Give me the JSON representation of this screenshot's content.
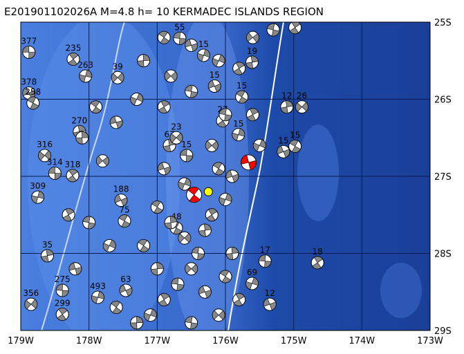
{
  "map": {
    "title": "E201901102026A M=4.8 h= 10 KERMADEC ISLANDS REGION",
    "xlim": [
      -179,
      -173
    ],
    "ylim": [
      -29,
      -25
    ],
    "xticks": [
      {
        "value": -179,
        "label": "179W"
      },
      {
        "value": -178,
        "label": "178W"
      },
      {
        "value": -177,
        "label": "177W"
      },
      {
        "value": -176,
        "label": "176W"
      },
      {
        "value": -175,
        "label": "175W"
      },
      {
        "value": -174,
        "label": "174W"
      },
      {
        "value": -173,
        "label": "173W"
      }
    ],
    "yticks": [
      {
        "value": -25,
        "label": "25S"
      },
      {
        "value": -26,
        "label": "26S"
      },
      {
        "value": -27,
        "label": "27S"
      },
      {
        "value": -28,
        "label": "28S"
      },
      {
        "value": -29,
        "label": "29S"
      }
    ],
    "events": [
      {
        "lon": -178.88,
        "lat": -25.39,
        "label": "377"
      },
      {
        "lon": -178.23,
        "lat": -25.48,
        "label": "235"
      },
      {
        "lon": -178.05,
        "lat": -25.7,
        "label": "263"
      },
      {
        "lon": -178.88,
        "lat": -25.92,
        "label": "378"
      },
      {
        "lon": -178.82,
        "lat": -26.05,
        "label": "258"
      },
      {
        "lon": -178.14,
        "lat": -26.42,
        "label": "270"
      },
      {
        "lon": -178.65,
        "lat": -26.73,
        "label": "316"
      },
      {
        "lon": -178.5,
        "lat": -26.96,
        "label": "314"
      },
      {
        "lon": -178.24,
        "lat": -26.99,
        "label": "318"
      },
      {
        "lon": -178.75,
        "lat": -27.27,
        "label": "309"
      },
      {
        "lon": -177.53,
        "lat": -27.31,
        "label": "188"
      },
      {
        "lon": -177.48,
        "lat": -27.58,
        "label": "75"
      },
      {
        "lon": -178.61,
        "lat": -28.03,
        "label": "35"
      },
      {
        "lon": -178.85,
        "lat": -28.66,
        "label": "356"
      },
      {
        "lon": -178.39,
        "lat": -28.48,
        "label": "275"
      },
      {
        "lon": -178.39,
        "lat": -28.79,
        "label": "299"
      },
      {
        "lon": -177.87,
        "lat": -28.57,
        "label": "493"
      },
      {
        "lon": -177.46,
        "lat": -28.48,
        "label": "63"
      },
      {
        "lon": -176.72,
        "lat": -27.67,
        "label": "48"
      },
      {
        "lon": -176.82,
        "lat": -26.6,
        "label": "67"
      },
      {
        "lon": -176.72,
        "lat": -26.5,
        "label": "23"
      },
      {
        "lon": -176.57,
        "lat": -26.73,
        "label": "15"
      },
      {
        "lon": -176.04,
        "lat": -26.28,
        "label": "27"
      },
      {
        "lon": -175.81,
        "lat": -26.46,
        "label": "15"
      },
      {
        "lon": -175.15,
        "lat": -26.68,
        "label": "15"
      },
      {
        "lon": -174.98,
        "lat": -26.61,
        "label": "15"
      },
      {
        "lon": -175.1,
        "lat": -26.1,
        "label": "12"
      },
      {
        "lon": -174.88,
        "lat": -26.1,
        "label": "26"
      },
      {
        "lon": -175.42,
        "lat": -28.1,
        "label": "17"
      },
      {
        "lon": -174.65,
        "lat": -28.12,
        "label": "18"
      },
      {
        "lon": -176.32,
        "lat": -25.43,
        "label": "15"
      },
      {
        "lon": -176.16,
        "lat": -25.83,
        "label": "15"
      },
      {
        "lon": -175.76,
        "lat": -25.97,
        "label": "15"
      },
      {
        "lon": -175.61,
        "lat": -25.52,
        "label": "19"
      },
      {
        "lon": -177.58,
        "lat": -25.72,
        "label": "39"
      },
      {
        "lon": -176.67,
        "lat": -25.21,
        "label": "55"
      },
      {
        "lon": -174.98,
        "lat": -25.07,
        "label": "12"
      },
      {
        "lon": -175.61,
        "lat": -28.39,
        "label": "69"
      },
      {
        "lon": -175.35,
        "lat": -28.66,
        "label": "12"
      },
      {
        "lon": -177.0,
        "lat": -27.4
      },
      {
        "lon": -176.8,
        "lat": -27.6
      },
      {
        "lon": -176.6,
        "lat": -27.8
      },
      {
        "lon": -176.4,
        "lat": -28.0
      },
      {
        "lon": -176.2,
        "lat": -27.5
      },
      {
        "lon": -176.0,
        "lat": -27.3
      },
      {
        "lon": -175.9,
        "lat": -27.0
      },
      {
        "lon": -176.1,
        "lat": -26.9
      },
      {
        "lon": -176.3,
        "lat": -27.7
      },
      {
        "lon": -176.5,
        "lat": -28.2
      },
      {
        "lon": -176.7,
        "lat": -28.4
      },
      {
        "lon": -176.9,
        "lat": -28.6
      },
      {
        "lon": -177.1,
        "lat": -28.8
      },
      {
        "lon": -176.3,
        "lat": -28.5
      },
      {
        "lon": -176.0,
        "lat": -28.3
      },
      {
        "lon": -175.9,
        "lat": -28.0
      },
      {
        "lon": -176.1,
        "lat": -28.8
      },
      {
        "lon": -176.5,
        "lat": -28.9
      },
      {
        "lon": -175.8,
        "lat": -28.6
      },
      {
        "lon": -176.6,
        "lat": -27.1
      },
      {
        "lon": -176.9,
        "lat": -26.9
      },
      {
        "lon": -177.2,
        "lat": -27.9
      },
      {
        "lon": -177.0,
        "lat": -28.2
      },
      {
        "lon": -176.2,
        "lat": -26.6
      },
      {
        "lon": -176.0,
        "lat": -26.2
      },
      {
        "lon": -175.8,
        "lat": -25.6
      },
      {
        "lon": -176.1,
        "lat": -25.5
      },
      {
        "lon": -176.5,
        "lat": -25.3
      },
      {
        "lon": -176.9,
        "lat": -25.2
      },
      {
        "lon": -177.2,
        "lat": -25.5
      },
      {
        "lon": -176.8,
        "lat": -25.7
      },
      {
        "lon": -176.5,
        "lat": -25.9
      },
      {
        "lon": -176.9,
        "lat": -26.1
      },
      {
        "lon": -177.3,
        "lat": -26.0
      },
      {
        "lon": -177.6,
        "lat": -26.3
      },
      {
        "lon": -177.9,
        "lat": -26.1
      },
      {
        "lon": -178.1,
        "lat": -26.5
      },
      {
        "lon": -177.8,
        "lat": -26.8
      },
      {
        "lon": -178.0,
        "lat": -27.6
      },
      {
        "lon": -178.3,
        "lat": -27.5
      },
      {
        "lon": -177.7,
        "lat": -27.9
      },
      {
        "lon": -178.2,
        "lat": -28.2
      },
      {
        "lon": -177.6,
        "lat": -28.7
      },
      {
        "lon": -177.3,
        "lat": -28.9
      },
      {
        "lon": -175.6,
        "lat": -25.2
      },
      {
        "lon": -175.3,
        "lat": -25.1
      },
      {
        "lon": -175.6,
        "lat": -26.2
      },
      {
        "lon": -175.5,
        "lat": -26.6
      },
      {
        "lon": -175.66,
        "lat": -26.82,
        "color": "#ff0000"
      },
      {
        "lon": -176.46,
        "lat": -27.24,
        "color": "#ff0000"
      }
    ],
    "epicenter": {
      "lon": -176.25,
      "lat": -27.2,
      "color": "#ffff00"
    }
  }
}
